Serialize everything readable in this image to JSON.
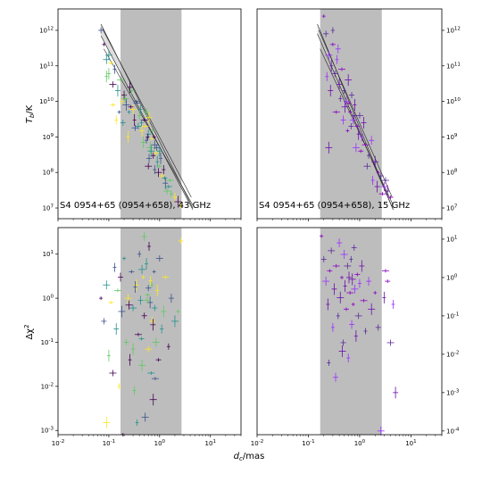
{
  "chart_data": [
    {
      "panel": "top-left",
      "type": "scatter",
      "annotation": "S4 0954+65 (0954+658), 43 GHz",
      "xscale": "log",
      "yscale": "log",
      "xlim": [
        0.01,
        40
      ],
      "ylim": [
        5000000,
        4000000000000
      ],
      "ylabel": "T_b/K",
      "y_tick_side": "left",
      "yticks": [
        {
          "v": 10000000,
          "m": "7"
        },
        {
          "v": 100000000,
          "m": "8"
        },
        {
          "v": 1000000000,
          "m": "9"
        },
        {
          "v": 10000000000,
          "m": "10"
        },
        {
          "v": 100000000000,
          "m": "11"
        },
        {
          "v": 1000000000000,
          "m": "12"
        }
      ],
      "shaded_band": [
        0.17,
        2.7
      ],
      "fit_lines": [
        [
          [
            0.07,
            1500000000000
          ],
          [
            4.5,
            10000000
          ]
        ],
        [
          [
            0.07,
            700000000000
          ],
          [
            4.5,
            9000000
          ]
        ],
        [
          [
            0.075,
            1100000000000
          ],
          [
            4.2,
            20000000
          ]
        ],
        [
          [
            0.08,
            300000000000
          ],
          [
            4.5,
            12000000
          ]
        ]
      ],
      "colors": [
        "#440154",
        "#3b528b",
        "#21918c",
        "#5ec962",
        "#fde725"
      ],
      "points": [
        [
          0.08,
          400000000000
        ],
        [
          0.07,
          1000000000000
        ],
        [
          0.09,
          150000000000
        ],
        [
          0.1,
          60000000000
        ],
        [
          0.11,
          120000000000
        ],
        [
          0.12,
          30000000000
        ],
        [
          0.13,
          80000000000
        ],
        [
          0.15,
          20000000000
        ],
        [
          0.17,
          40000000000
        ],
        [
          0.18,
          10000000000
        ],
        [
          0.2,
          15000000000
        ],
        [
          0.22,
          8000000000
        ],
        [
          0.25,
          5000000000
        ],
        [
          0.28,
          20000000000
        ],
        [
          0.3,
          6000000000
        ],
        [
          0.32,
          3000000000
        ],
        [
          0.35,
          10000000000
        ],
        [
          0.38,
          2000000000
        ],
        [
          0.4,
          4000000000
        ],
        [
          0.45,
          1500000000
        ],
        [
          0.5,
          3000000000
        ],
        [
          0.55,
          800000000
        ],
        [
          0.6,
          1200000000
        ],
        [
          0.65,
          500000000
        ],
        [
          0.7,
          900000000
        ],
        [
          0.75,
          300000000
        ],
        [
          0.8,
          600000000
        ],
        [
          0.9,
          200000000
        ],
        [
          1,
          150000000
        ],
        [
          1.1,
          80000000
        ],
        [
          1.2,
          120000000
        ],
        [
          1.3,
          50000000
        ],
        [
          1.5,
          40000000
        ],
        [
          1.7,
          25000000
        ],
        [
          2,
          20000000
        ],
        [
          2.3,
          15000000
        ],
        [
          0.16,
          5000000000
        ],
        [
          0.19,
          2500000000
        ],
        [
          0.21,
          12000000000
        ],
        [
          0.24,
          1000000000
        ],
        [
          0.27,
          7000000000
        ],
        [
          0.33,
          1800000000
        ],
        [
          0.42,
          6000000000
        ],
        [
          0.48,
          700000000
        ],
        [
          0.52,
          2000000000
        ],
        [
          0.58,
          1000000000
        ],
        [
          0.62,
          250000000
        ],
        [
          0.68,
          400000000
        ],
        [
          0.72,
          1500000000
        ],
        [
          0.85,
          350000000
        ],
        [
          0.95,
          100000000
        ],
        [
          1.05,
          250000000
        ],
        [
          1.25,
          70000000
        ],
        [
          1.4,
          30000000
        ],
        [
          0.14,
          3000000000
        ],
        [
          0.26,
          25000000000
        ],
        [
          0.36,
          9000000000
        ],
        [
          0.44,
          2500000000
        ],
        [
          0.55,
          5000000000
        ],
        [
          0.62,
          3500000000
        ],
        [
          0.78,
          1000000000
        ],
        [
          0.88,
          500000000
        ],
        [
          0.1,
          200000000000
        ],
        [
          0.09,
          50000000000
        ],
        [
          0.12,
          8000000000
        ],
        [
          0.6,
          150000000
        ],
        [
          0.8,
          120000000
        ],
        [
          1,
          400000000
        ],
        [
          1.6,
          60000000
        ],
        [
          2.6,
          12000000
        ]
      ]
    },
    {
      "panel": "top-right",
      "type": "scatter",
      "annotation": "S4 0954+65 (0954+658), 15 GHz",
      "xscale": "log",
      "yscale": "log",
      "xlim": [
        0.01,
        40
      ],
      "ylim": [
        5000000,
        4000000000000
      ],
      "ylabel": "",
      "y_tick_side": "right",
      "yticks": [
        {
          "v": 10000000,
          "m": "7"
        },
        {
          "v": 100000000,
          "m": "8"
        },
        {
          "v": 1000000000,
          "m": "9"
        },
        {
          "v": 10000000000,
          "m": "10"
        },
        {
          "v": 100000000000,
          "m": "11"
        },
        {
          "v": 1000000000000,
          "m": "12"
        }
      ],
      "shaded_band": [
        0.17,
        2.7
      ],
      "fit_lines": [
        [
          [
            0.15,
            1500000000000
          ],
          [
            4.5,
            9000000
          ]
        ],
        [
          [
            0.15,
            800000000000
          ],
          [
            4.5,
            9000000
          ]
        ],
        [
          [
            0.16,
            1000000000000
          ],
          [
            4.3,
            20000000
          ]
        ],
        [
          [
            0.17,
            300000000000
          ],
          [
            4.5,
            12000000
          ]
        ]
      ],
      "colors": [
        "#8a00c2",
        "#5a2a9a",
        "#9b30ff",
        "#6a0dad"
      ],
      "points": [
        [
          0.2,
          2500000000000
        ],
        [
          0.22,
          800000000000
        ],
        [
          0.25,
          200000000000
        ],
        [
          0.28,
          100000000000
        ],
        [
          0.3,
          400000000000
        ],
        [
          0.33,
          60000000000
        ],
        [
          0.36,
          150000000000
        ],
        [
          0.4,
          30000000000
        ],
        [
          0.45,
          80000000000
        ],
        [
          0.5,
          20000000000
        ],
        [
          0.55,
          10000000000
        ],
        [
          0.6,
          40000000000
        ],
        [
          0.65,
          5000000000
        ],
        [
          0.7,
          15000000000
        ],
        [
          0.75,
          3000000000
        ],
        [
          0.8,
          8000000000
        ],
        [
          0.9,
          2000000000
        ],
        [
          1,
          4000000000
        ],
        [
          1.1,
          1000000000
        ],
        [
          1.2,
          2500000000
        ],
        [
          1.3,
          600000000
        ],
        [
          1.5,
          300000000
        ],
        [
          1.7,
          800000000
        ],
        [
          2,
          200000000
        ],
        [
          2.3,
          100000000
        ],
        [
          2.6,
          80000000
        ],
        [
          3,
          40000000
        ],
        [
          3.5,
          30000000
        ],
        [
          4,
          20000000
        ],
        [
          3.2,
          60000000
        ],
        [
          0.23,
          50000000000
        ],
        [
          0.27,
          20000000000
        ],
        [
          0.35,
          5000000000
        ],
        [
          0.42,
          12000000000
        ],
        [
          0.48,
          3000000000
        ],
        [
          0.52,
          7000000000
        ],
        [
          0.58,
          1500000000
        ],
        [
          0.68,
          2000000000
        ],
        [
          0.85,
          500000000
        ],
        [
          0.95,
          1200000000
        ],
        [
          1.05,
          400000000
        ],
        [
          1.4,
          150000000
        ],
        [
          1.8,
          60000000
        ],
        [
          2.2,
          40000000
        ],
        [
          2.8,
          25000000
        ],
        [
          0.3,
          1000000000000
        ],
        [
          0.38,
          300000000000
        ],
        [
          0.25,
          500000000
        ],
        [
          0.62,
          9000000000
        ],
        [
          0.78,
          4000000000
        ]
      ]
    },
    {
      "panel": "bottom-left",
      "type": "scatter",
      "xscale": "log",
      "yscale": "log",
      "xlim": [
        0.01,
        40
      ],
      "ylim": [
        0.0008,
        40
      ],
      "ylabel": "Δχ²",
      "y_tick_side": "left",
      "yticks": [
        {
          "v": 0.001,
          "m": "-3"
        },
        {
          "v": 0.01,
          "m": "-2"
        },
        {
          "v": 0.1,
          "m": "-1"
        },
        {
          "v": 1,
          "m": "0"
        },
        {
          "v": 10,
          "m": "1"
        }
      ],
      "shaded_band": [
        0.17,
        2.7
      ],
      "colors": [
        "#440154",
        "#3b528b",
        "#21918c",
        "#5ec962",
        "#fde725"
      ],
      "points": [
        [
          0.07,
          1
        ],
        [
          0.08,
          0.3
        ],
        [
          0.09,
          2
        ],
        [
          0.1,
          0.05
        ],
        [
          0.11,
          0.8
        ],
        [
          0.12,
          0.02
        ],
        [
          0.13,
          5
        ],
        [
          0.14,
          0.2
        ],
        [
          0.15,
          1.5
        ],
        [
          0.16,
          0.01
        ],
        [
          0.17,
          3
        ],
        [
          0.18,
          0.5
        ],
        [
          0.2,
          8
        ],
        [
          0.22,
          0.1
        ],
        [
          0.24,
          1
        ],
        [
          0.26,
          0.04
        ],
        [
          0.28,
          4
        ],
        [
          0.3,
          0.6
        ],
        [
          0.32,
          0.008
        ],
        [
          0.35,
          2
        ],
        [
          0.38,
          0.15
        ],
        [
          0.4,
          10
        ],
        [
          0.42,
          0.9
        ],
        [
          0.45,
          0.03
        ],
        [
          0.48,
          3
        ],
        [
          0.5,
          0.4
        ],
        [
          0.52,
          0.002
        ],
        [
          0.55,
          6
        ],
        [
          0.58,
          1.2
        ],
        [
          0.6,
          0.07
        ],
        [
          0.62,
          15
        ],
        [
          0.65,
          0.8
        ],
        [
          0.68,
          0.02
        ],
        [
          0.7,
          2
        ],
        [
          0.72,
          0.3
        ],
        [
          0.75,
          0.005
        ],
        [
          0.78,
          4
        ],
        [
          0.8,
          0.6
        ],
        [
          0.85,
          0.1
        ],
        [
          0.9,
          1.5
        ],
        [
          0.95,
          0.04
        ],
        [
          1,
          8
        ],
        [
          1.1,
          0.2
        ],
        [
          1.2,
          0.5
        ],
        [
          1.3,
          3
        ],
        [
          1.5,
          0.08
        ],
        [
          1.7,
          1
        ],
        [
          2,
          0.3
        ],
        [
          2.3,
          0.5
        ],
        [
          2.6,
          20
        ],
        [
          0.25,
          0.7
        ],
        [
          0.33,
          1.8
        ],
        [
          0.44,
          0.12
        ],
        [
          0.57,
          0.9
        ],
        [
          0.66,
          2.5
        ],
        [
          0.74,
          0.25
        ],
        [
          0.82,
          0.015
        ],
        [
          0.36,
          0.0015
        ],
        [
          0.5,
          25
        ],
        [
          0.09,
          0.0015
        ],
        [
          0.19,
          0.0008
        ],
        [
          0.6,
          1.7
        ],
        [
          0.45,
          4.5
        ],
        [
          0.3,
          0.07
        ]
      ]
    },
    {
      "panel": "bottom-right",
      "type": "scatter",
      "xscale": "log",
      "yscale": "log",
      "xlim": [
        0.01,
        40
      ],
      "ylim": [
        8e-05,
        20
      ],
      "ylabel": "",
      "y_tick_side": "right",
      "yticks": [
        {
          "v": 0.0001,
          "m": "-4"
        },
        {
          "v": 0.001,
          "m": "-3"
        },
        {
          "v": 0.01,
          "m": "-2"
        },
        {
          "v": 0.1,
          "m": "-1"
        },
        {
          "v": 1,
          "m": "0"
        },
        {
          "v": 10,
          "m": "1"
        }
      ],
      "shaded_band": [
        0.17,
        2.7
      ],
      "colors": [
        "#8a00c2",
        "#5a2a9a",
        "#9b30ff",
        "#6a0dad"
      ],
      "points": [
        [
          0.18,
          12
        ],
        [
          0.2,
          3
        ],
        [
          0.22,
          0.8
        ],
        [
          0.24,
          0.2
        ],
        [
          0.26,
          1.5
        ],
        [
          0.28,
          5
        ],
        [
          0.3,
          0.05
        ],
        [
          0.32,
          0.5
        ],
        [
          0.35,
          2
        ],
        [
          0.38,
          0.1
        ],
        [
          0.4,
          8
        ],
        [
          0.42,
          0.3
        ],
        [
          0.45,
          1
        ],
        [
          0.48,
          0.02
        ],
        [
          0.5,
          4
        ],
        [
          0.52,
          0.6
        ],
        [
          0.55,
          0.15
        ],
        [
          0.58,
          2
        ],
        [
          0.6,
          0.008
        ],
        [
          0.62,
          1
        ],
        [
          0.65,
          0.4
        ],
        [
          0.68,
          3
        ],
        [
          0.7,
          0.06
        ],
        [
          0.72,
          0.9
        ],
        [
          0.75,
          0.2
        ],
        [
          0.78,
          6
        ],
        [
          0.8,
          0.5
        ],
        [
          0.85,
          0.03
        ],
        [
          0.9,
          1.2
        ],
        [
          0.95,
          0.1
        ],
        [
          1,
          0.7
        ],
        [
          1.1,
          2
        ],
        [
          1.2,
          0.25
        ],
        [
          1.3,
          0.04
        ],
        [
          1.5,
          0.8
        ],
        [
          1.7,
          0.15
        ],
        [
          2,
          0.4
        ],
        [
          2.3,
          0.05
        ],
        [
          2.6,
          0.0001
        ],
        [
          3,
          0.3
        ],
        [
          3.5,
          0.8
        ],
        [
          4,
          0.02
        ],
        [
          4.5,
          0.2
        ],
        [
          5,
          0.001
        ],
        [
          3.2,
          1.5
        ],
        [
          0.25,
          0.006
        ],
        [
          0.34,
          0.0025
        ],
        [
          0.46,
          0.012
        ]
      ]
    }
  ],
  "shared_xlabel": "d_c/mas",
  "x_ticks": [
    {
      "v": 0.01,
      "m": "-2"
    },
    {
      "v": 0.1,
      "m": "-1"
    },
    {
      "v": 1,
      "m": "0"
    },
    {
      "v": 10,
      "m": "1"
    }
  ]
}
